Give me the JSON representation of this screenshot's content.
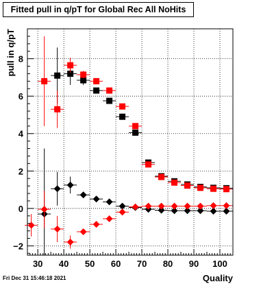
{
  "title": "Fitted pull in q/pT for Global Rec All NoHits",
  "footer": "Fri Dec 31 15:46:18 2021",
  "chart_data": {
    "type": "scatter",
    "title": "Fitted pull in q/pT for Global Rec All NoHits",
    "xlabel": "Quality",
    "ylabel": "pull in q/pT",
    "xlim": [
      26,
      105
    ],
    "ylim": [
      -2.5,
      9.6
    ],
    "xticks": [
      30,
      40,
      50,
      60,
      70,
      80,
      90,
      100
    ],
    "yticks": [
      -2,
      0,
      2,
      4,
      6,
      8
    ],
    "grid": true,
    "series": [
      {
        "marker": "square",
        "color": "#000000",
        "points": [
          {
            "x": 37.5,
            "y": 7.1,
            "yerr": 1.5
          },
          {
            "x": 42.5,
            "y": 7.2,
            "yerr": 0.6
          },
          {
            "x": 47.5,
            "y": 6.85,
            "yerr": 0.25
          },
          {
            "x": 52.5,
            "y": 6.3,
            "yerr": 0.12
          },
          {
            "x": 57.5,
            "y": 5.75,
            "yerr": 0.1
          },
          {
            "x": 62.5,
            "y": 4.9,
            "yerr": 0.1
          },
          {
            "x": 67.5,
            "y": 4.05,
            "yerr": 0.1
          },
          {
            "x": 72.5,
            "y": 2.45,
            "yerr": 0.1
          },
          {
            "x": 77.5,
            "y": 1.72,
            "yerr": 0.1
          },
          {
            "x": 82.5,
            "y": 1.45,
            "yerr": 0.1
          },
          {
            "x": 87.5,
            "y": 1.28,
            "yerr": 0.1
          },
          {
            "x": 92.5,
            "y": 1.15,
            "yerr": 0.1
          },
          {
            "x": 97.5,
            "y": 1.1,
            "yerr": 0.1
          },
          {
            "x": 102.5,
            "y": 1.08,
            "yerr": 0.1
          }
        ]
      },
      {
        "marker": "square",
        "color": "#ff0000",
        "points": [
          {
            "x": 32.5,
            "y": 6.8,
            "yerr": 2.4
          },
          {
            "x": 37.5,
            "y": 5.3,
            "yerr": 1.0
          },
          {
            "x": 42.5,
            "y": 7.65,
            "yerr": 0.4
          },
          {
            "x": 47.5,
            "y": 7.15,
            "yerr": 0.2
          },
          {
            "x": 52.5,
            "y": 6.8,
            "yerr": 0.12
          },
          {
            "x": 57.5,
            "y": 6.3,
            "yerr": 0.1
          },
          {
            "x": 62.5,
            "y": 5.45,
            "yerr": 0.1
          },
          {
            "x": 67.5,
            "y": 4.4,
            "yerr": 0.1
          },
          {
            "x": 72.5,
            "y": 2.35,
            "yerr": 0.1
          },
          {
            "x": 77.5,
            "y": 1.68,
            "yerr": 0.1
          },
          {
            "x": 82.5,
            "y": 1.38,
            "yerr": 0.1
          },
          {
            "x": 87.5,
            "y": 1.22,
            "yerr": 0.1
          },
          {
            "x": 92.5,
            "y": 1.1,
            "yerr": 0.1
          },
          {
            "x": 97.5,
            "y": 1.05,
            "yerr": 0.1
          },
          {
            "x": 102.5,
            "y": 1.03,
            "yerr": 0.1
          }
        ]
      },
      {
        "marker": "diamond",
        "color": "#000000",
        "points": [
          {
            "x": 32.5,
            "y": -0.3,
            "yerr": 3.5
          },
          {
            "x": 37.5,
            "y": 1.05,
            "yerr": 0.9
          },
          {
            "x": 42.5,
            "y": 1.25,
            "yerr": 0.45
          },
          {
            "x": 47.5,
            "y": 0.72,
            "yerr": 0.15
          },
          {
            "x": 52.5,
            "y": 0.5,
            "yerr": 0.1
          },
          {
            "x": 57.5,
            "y": 0.35,
            "yerr": 0.1
          },
          {
            "x": 62.5,
            "y": 0.12,
            "yerr": 0.08
          },
          {
            "x": 67.5,
            "y": 0.05,
            "yerr": 0.08
          },
          {
            "x": 72.5,
            "y": -0.05,
            "yerr": 0.08
          },
          {
            "x": 77.5,
            "y": -0.1,
            "yerr": 0.08
          },
          {
            "x": 82.5,
            "y": -0.12,
            "yerr": 0.08
          },
          {
            "x": 87.5,
            "y": -0.12,
            "yerr": 0.08
          },
          {
            "x": 92.5,
            "y": -0.12,
            "yerr": 0.08
          },
          {
            "x": 97.5,
            "y": -0.15,
            "yerr": 0.08
          },
          {
            "x": 102.5,
            "y": -0.15,
            "yerr": 0.08
          }
        ]
      },
      {
        "marker": "diamond",
        "color": "#ff0000",
        "points": [
          {
            "x": 27.5,
            "y": -0.9,
            "yerr": 0.6
          },
          {
            "x": 32.5,
            "y": -0.05,
            "yerr": 1.0
          },
          {
            "x": 37.5,
            "y": -1.1,
            "yerr": 0.7
          },
          {
            "x": 42.5,
            "y": -1.8,
            "yerr": 0.35
          },
          {
            "x": 47.5,
            "y": -1.25,
            "yerr": 0.15
          },
          {
            "x": 52.5,
            "y": -0.85,
            "yerr": 0.1
          },
          {
            "x": 57.5,
            "y": -0.55,
            "yerr": 0.08
          },
          {
            "x": 62.5,
            "y": -0.2,
            "yerr": 0.08
          },
          {
            "x": 67.5,
            "y": 0.08,
            "yerr": 0.08
          },
          {
            "x": 72.5,
            "y": 0.12,
            "yerr": 0.08
          },
          {
            "x": 77.5,
            "y": 0.12,
            "yerr": 0.08
          },
          {
            "x": 82.5,
            "y": 0.12,
            "yerr": 0.08
          },
          {
            "x": 87.5,
            "y": 0.12,
            "yerr": 0.08
          },
          {
            "x": 92.5,
            "y": 0.12,
            "yerr": 0.08
          },
          {
            "x": 97.5,
            "y": 0.15,
            "yerr": 0.08
          },
          {
            "x": 102.5,
            "y": 0.15,
            "yerr": 0.08
          }
        ]
      }
    ]
  }
}
